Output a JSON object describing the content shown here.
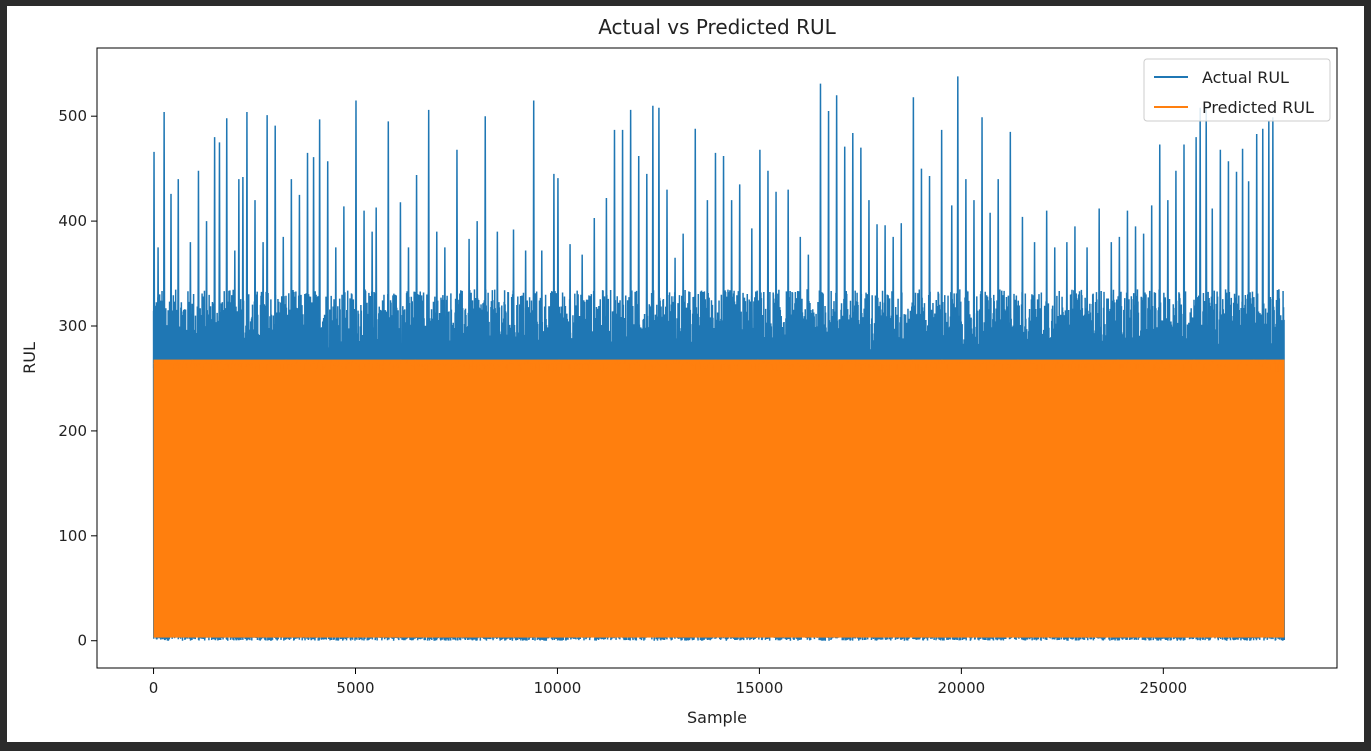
{
  "chart_data": {
    "type": "line",
    "title": "Actual vs Predicted RUL",
    "xlabel": "Sample",
    "ylabel": "RUL",
    "xlim": [
      -1400,
      29300
    ],
    "ylim": [
      -26,
      565
    ],
    "xticks": [
      0,
      5000,
      10000,
      15000,
      20000,
      25000
    ],
    "yticks": [
      0,
      100,
      200,
      300,
      400,
      500
    ],
    "grid": false,
    "legend_position": "top-right",
    "n_samples": 28000,
    "series": [
      {
        "name": "Actual RUL",
        "color": "#1f77b4",
        "band_min": 0,
        "dense_top": 300,
        "peaks": [
          {
            "x": 0,
            "y": 466
          },
          {
            "x": 100,
            "y": 375
          },
          {
            "x": 250,
            "y": 504
          },
          {
            "x": 420,
            "y": 426
          },
          {
            "x": 600,
            "y": 440
          },
          {
            "x": 900,
            "y": 380
          },
          {
            "x": 1100,
            "y": 448
          },
          {
            "x": 1300,
            "y": 400
          },
          {
            "x": 1500,
            "y": 480
          },
          {
            "x": 1620,
            "y": 475
          },
          {
            "x": 1800,
            "y": 498
          },
          {
            "x": 2000,
            "y": 372
          },
          {
            "x": 2100,
            "y": 440
          },
          {
            "x": 2200,
            "y": 442
          },
          {
            "x": 2300,
            "y": 504
          },
          {
            "x": 2500,
            "y": 420
          },
          {
            "x": 2700,
            "y": 380
          },
          {
            "x": 2800,
            "y": 501
          },
          {
            "x": 3000,
            "y": 491
          },
          {
            "x": 3200,
            "y": 385
          },
          {
            "x": 3400,
            "y": 440
          },
          {
            "x": 3600,
            "y": 425
          },
          {
            "x": 3800,
            "y": 465
          },
          {
            "x": 3950,
            "y": 461
          },
          {
            "x": 4100,
            "y": 497
          },
          {
            "x": 4300,
            "y": 457
          },
          {
            "x": 4500,
            "y": 375
          },
          {
            "x": 4700,
            "y": 414
          },
          {
            "x": 5000,
            "y": 515
          },
          {
            "x": 5200,
            "y": 410
          },
          {
            "x": 5400,
            "y": 390
          },
          {
            "x": 5500,
            "y": 413
          },
          {
            "x": 5800,
            "y": 495
          },
          {
            "x": 6100,
            "y": 418
          },
          {
            "x": 6300,
            "y": 375
          },
          {
            "x": 6500,
            "y": 444
          },
          {
            "x": 6800,
            "y": 506
          },
          {
            "x": 7000,
            "y": 390
          },
          {
            "x": 7200,
            "y": 375
          },
          {
            "x": 7500,
            "y": 468
          },
          {
            "x": 7800,
            "y": 383
          },
          {
            "x": 8000,
            "y": 400
          },
          {
            "x": 8200,
            "y": 500
          },
          {
            "x": 8500,
            "y": 390
          },
          {
            "x": 8900,
            "y": 392
          },
          {
            "x": 9200,
            "y": 372
          },
          {
            "x": 9400,
            "y": 515
          },
          {
            "x": 9600,
            "y": 372
          },
          {
            "x": 9900,
            "y": 445
          },
          {
            "x": 10000,
            "y": 441
          },
          {
            "x": 10300,
            "y": 378
          },
          {
            "x": 10600,
            "y": 368
          },
          {
            "x": 10900,
            "y": 403
          },
          {
            "x": 11200,
            "y": 422
          },
          {
            "x": 11400,
            "y": 487
          },
          {
            "x": 11600,
            "y": 487
          },
          {
            "x": 11800,
            "y": 506
          },
          {
            "x": 12000,
            "y": 462
          },
          {
            "x": 12200,
            "y": 445
          },
          {
            "x": 12350,
            "y": 510
          },
          {
            "x": 12500,
            "y": 508
          },
          {
            "x": 12700,
            "y": 430
          },
          {
            "x": 12900,
            "y": 365
          },
          {
            "x": 13100,
            "y": 388
          },
          {
            "x": 13400,
            "y": 488
          },
          {
            "x": 13700,
            "y": 420
          },
          {
            "x": 13900,
            "y": 465
          },
          {
            "x": 14100,
            "y": 462
          },
          {
            "x": 14300,
            "y": 420
          },
          {
            "x": 14500,
            "y": 435
          },
          {
            "x": 14800,
            "y": 393
          },
          {
            "x": 15000,
            "y": 468
          },
          {
            "x": 15200,
            "y": 448
          },
          {
            "x": 15400,
            "y": 428
          },
          {
            "x": 15700,
            "y": 430
          },
          {
            "x": 16000,
            "y": 385
          },
          {
            "x": 16200,
            "y": 368
          },
          {
            "x": 16500,
            "y": 531
          },
          {
            "x": 16700,
            "y": 505
          },
          {
            "x": 16900,
            "y": 520
          },
          {
            "x": 17100,
            "y": 471
          },
          {
            "x": 17300,
            "y": 484
          },
          {
            "x": 17500,
            "y": 470
          },
          {
            "x": 17700,
            "y": 420
          },
          {
            "x": 17900,
            "y": 397
          },
          {
            "x": 18100,
            "y": 396
          },
          {
            "x": 18300,
            "y": 385
          },
          {
            "x": 18500,
            "y": 398
          },
          {
            "x": 18800,
            "y": 518
          },
          {
            "x": 19000,
            "y": 450
          },
          {
            "x": 19200,
            "y": 443
          },
          {
            "x": 19500,
            "y": 487
          },
          {
            "x": 19750,
            "y": 415
          },
          {
            "x": 19900,
            "y": 538
          },
          {
            "x": 20100,
            "y": 440
          },
          {
            "x": 20300,
            "y": 420
          },
          {
            "x": 20500,
            "y": 499
          },
          {
            "x": 20700,
            "y": 408
          },
          {
            "x": 20900,
            "y": 440
          },
          {
            "x": 21200,
            "y": 485
          },
          {
            "x": 21500,
            "y": 404
          },
          {
            "x": 21800,
            "y": 380
          },
          {
            "x": 22100,
            "y": 410
          },
          {
            "x": 22300,
            "y": 375
          },
          {
            "x": 22600,
            "y": 380
          },
          {
            "x": 22800,
            "y": 395
          },
          {
            "x": 23100,
            "y": 375
          },
          {
            "x": 23400,
            "y": 412
          },
          {
            "x": 23700,
            "y": 380
          },
          {
            "x": 23900,
            "y": 385
          },
          {
            "x": 24100,
            "y": 410
          },
          {
            "x": 24300,
            "y": 395
          },
          {
            "x": 24500,
            "y": 388
          },
          {
            "x": 24700,
            "y": 415
          },
          {
            "x": 24900,
            "y": 473
          },
          {
            "x": 25100,
            "y": 420
          },
          {
            "x": 25300,
            "y": 448
          },
          {
            "x": 25500,
            "y": 473
          },
          {
            "x": 25800,
            "y": 480
          },
          {
            "x": 25900,
            "y": 508
          },
          {
            "x": 26050,
            "y": 508
          },
          {
            "x": 26200,
            "y": 412
          },
          {
            "x": 26400,
            "y": 468
          },
          {
            "x": 26600,
            "y": 457
          },
          {
            "x": 26800,
            "y": 447
          },
          {
            "x": 26950,
            "y": 469
          },
          {
            "x": 27100,
            "y": 438
          },
          {
            "x": 27300,
            "y": 483
          },
          {
            "x": 27450,
            "y": 488
          },
          {
            "x": 27600,
            "y": 495
          },
          {
            "x": 27700,
            "y": 499
          },
          {
            "x": 27850,
            "y": 335
          }
        ]
      },
      {
        "name": "Predicted RUL",
        "color": "#ff7f0e",
        "band_min": 3,
        "band_max": 268
      }
    ]
  }
}
